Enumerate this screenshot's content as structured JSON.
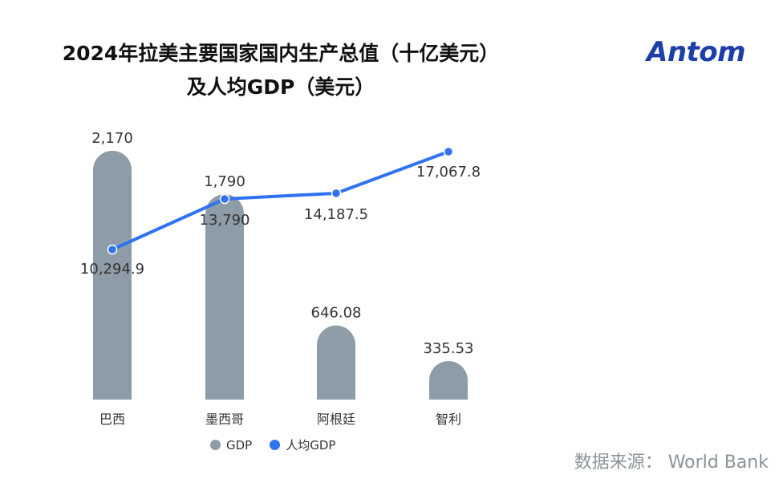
{
  "title_line1": "2024年拉美主要国家国内生产总值（十亿美元）",
  "title_line2": "及人均GDP（美元）",
  "logo_text": "Antom",
  "source_text": "数据来源：  World Bank",
  "colors": {
    "bar": "#8e9ca8",
    "line": "#2f72f2",
    "logo": "#1c3fa8"
  },
  "legend": {
    "gdp_label": "GDP",
    "per_capita_label": "人均GDP"
  },
  "chart_data": {
    "type": "bar",
    "categories": [
      "巴西",
      "墨西哥",
      "阿根廷",
      "智利"
    ],
    "series": [
      {
        "name": "GDP",
        "type": "bar",
        "values": [
          2170,
          1790,
          646.08,
          335.53
        ],
        "labels": [
          "2,170",
          "1,790",
          "646.08",
          "335.53"
        ]
      },
      {
        "name": "人均GDP",
        "type": "line",
        "values": [
          10294.9,
          13790,
          14187.5,
          17067.8
        ],
        "labels": [
          "10,294.9",
          "13,790",
          "14,187.5",
          "17,067.8"
        ]
      }
    ],
    "grid": false,
    "legend_position": "bottom"
  }
}
